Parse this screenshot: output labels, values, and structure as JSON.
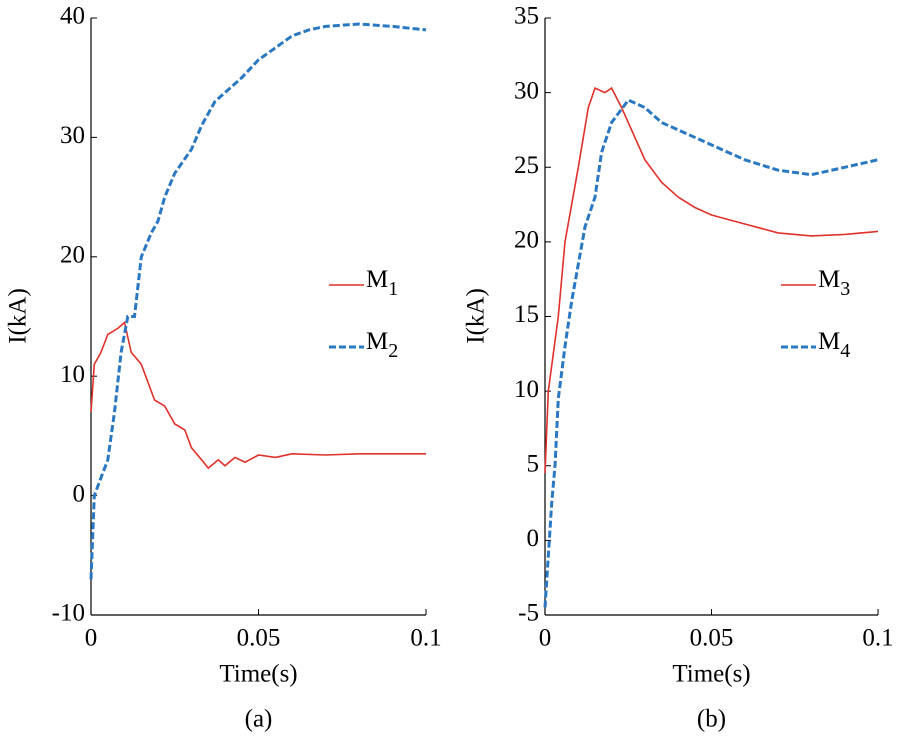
{
  "chart_data": [
    {
      "type": "line",
      "xlabel": "Time(s)",
      "ylabel": "I(kA)",
      "caption": "(a)",
      "xlim": [
        0,
        0.1
      ],
      "xticks": [
        0,
        0.05,
        0.1
      ],
      "ylim": [
        -10,
        40
      ],
      "yticks": [
        -10,
        0,
        10,
        20,
        30,
        40
      ],
      "grid": false,
      "legend": "right",
      "series": [
        {
          "name": "M1",
          "color": "#e0312a",
          "dash": false,
          "x": [
            0,
            0.001,
            0.003,
            0.005,
            0.008,
            0.01,
            0.012,
            0.015,
            0.019,
            0.022,
            0.025,
            0.028,
            0.03,
            0.033,
            0.035,
            0.038,
            0.04,
            0.043,
            0.046,
            0.05,
            0.055,
            0.06,
            0.07,
            0.08,
            0.09,
            0.1
          ],
          "values": [
            7,
            11,
            12,
            13.5,
            14,
            14.5,
            12,
            11,
            8,
            7.5,
            6,
            5.5,
            4,
            3,
            2.3,
            3,
            2.5,
            3.2,
            2.8,
            3.4,
            3.2,
            3.5,
            3.4,
            3.5,
            3.5,
            3.5
          ]
        },
        {
          "name": "M2",
          "color": "#2a78c2",
          "dash": true,
          "x": [
            0,
            0.001,
            0.003,
            0.005,
            0.007,
            0.009,
            0.011,
            0.013,
            0.015,
            0.018,
            0.02,
            0.022,
            0.025,
            0.03,
            0.033,
            0.037,
            0.045,
            0.05,
            0.055,
            0.06,
            0.065,
            0.07,
            0.08,
            0.09,
            0.1
          ],
          "values": [
            -7,
            0,
            1.5,
            3,
            7,
            12,
            15,
            15,
            20,
            22,
            23,
            25,
            27,
            29,
            31,
            33,
            35,
            36.5,
            37.5,
            38.5,
            39,
            39.3,
            39.5,
            39.3,
            39
          ]
        }
      ]
    },
    {
      "type": "line",
      "xlabel": "Time(s)",
      "ylabel": "I(kA)",
      "caption": "(b)",
      "xlim": [
        0,
        0.1
      ],
      "xticks": [
        0,
        0.05,
        0.1
      ],
      "ylim": [
        -5,
        35
      ],
      "yticks": [
        -5,
        0,
        5,
        10,
        15,
        20,
        25,
        30,
        35
      ],
      "grid": false,
      "legend": "right",
      "series": [
        {
          "name": "M3",
          "color": "#e0312a",
          "dash": false,
          "x": [
            0,
            0.001,
            0.004,
            0.006,
            0.01,
            0.013,
            0.015,
            0.018,
            0.02,
            0.023,
            0.027,
            0.03,
            0.035,
            0.04,
            0.045,
            0.05,
            0.06,
            0.07,
            0.08,
            0.09,
            0.1
          ],
          "values": [
            4.5,
            10,
            15,
            20,
            25,
            29,
            30.3,
            30,
            30.3,
            29,
            27,
            25.5,
            24,
            23,
            22.3,
            21.8,
            21.2,
            20.6,
            20.4,
            20.5,
            20.7
          ]
        },
        {
          "name": "M4",
          "color": "#2a78c2",
          "dash": true,
          "x": [
            0,
            0.002,
            0.003,
            0.004,
            0.006,
            0.008,
            0.01,
            0.012,
            0.015,
            0.017,
            0.02,
            0.025,
            0.03,
            0.035,
            0.04,
            0.05,
            0.06,
            0.07,
            0.08,
            0.09,
            0.1
          ],
          "values": [
            -4.5,
            2.5,
            5,
            9.5,
            13,
            16,
            18.5,
            21,
            23,
            26,
            28,
            29.5,
            29,
            28,
            27.5,
            26.5,
            25.5,
            24.8,
            24.5,
            25,
            25.5
          ]
        }
      ]
    }
  ]
}
